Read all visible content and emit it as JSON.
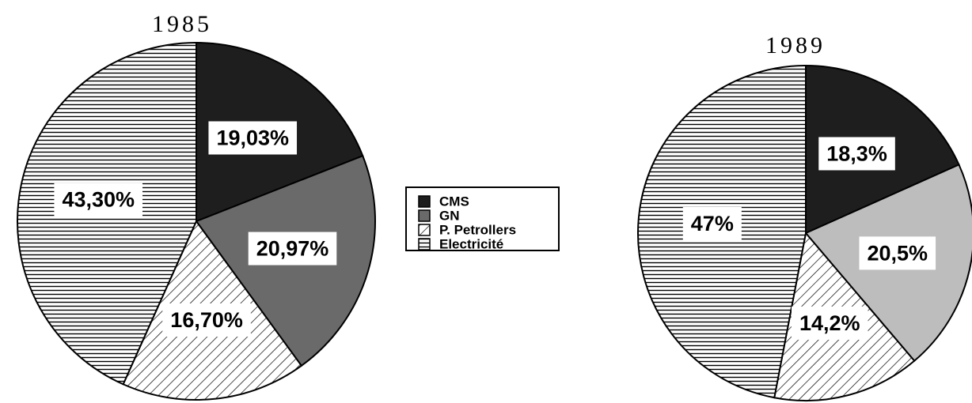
{
  "chart_data": [
    {
      "type": "pie",
      "title": "1985",
      "categories": [
        "CMS",
        "GN",
        "P. Petrollers",
        "Electricité"
      ],
      "values": [
        19.03,
        20.97,
        16.7,
        43.3
      ],
      "value_labels": [
        "19,03%",
        "20,97%",
        "16,70%",
        "43,30%"
      ],
      "colors": [
        "#1e1e1e",
        "#6a6a6a",
        "#ffffff",
        "#ffffff"
      ]
    },
    {
      "type": "pie",
      "title": "1989",
      "categories": [
        "CMS",
        "GN",
        "P. Petrollers",
        "Electricité"
      ],
      "values": [
        18.3,
        20.5,
        14.2,
        47
      ],
      "value_labels": [
        "18,3%",
        "20,5%",
        "14,2%",
        "47%"
      ],
      "colors": [
        "#1e1e1e",
        "#bdbdbd",
        "#ffffff",
        "#ffffff"
      ]
    }
  ]
}
